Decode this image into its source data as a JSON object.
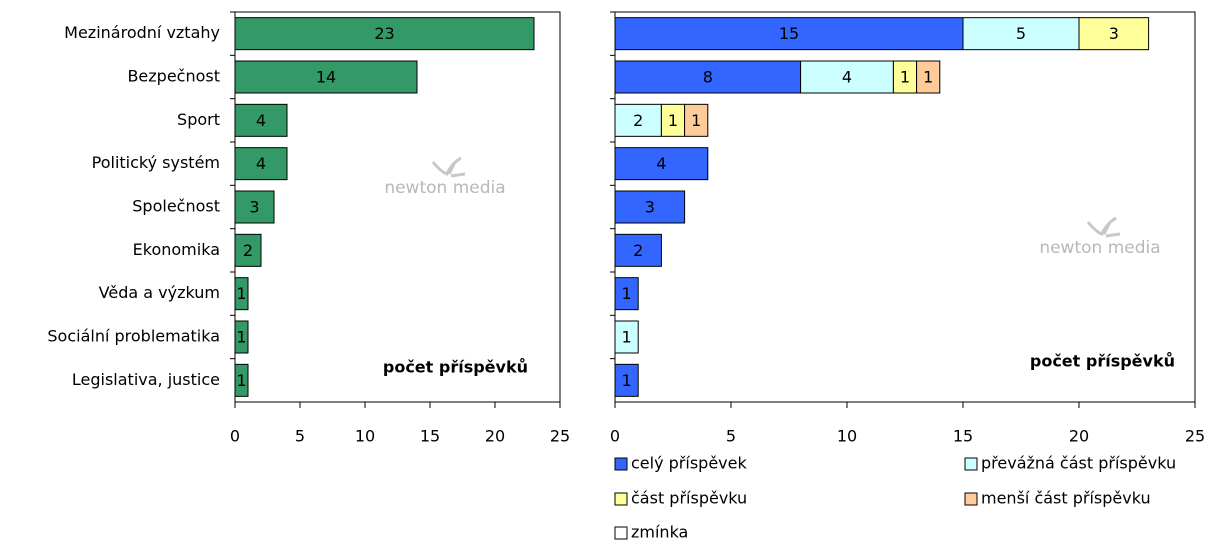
{
  "chart_data": [
    {
      "type": "bar",
      "orientation": "horizontal",
      "categories": [
        "Mezinárodní vztahy",
        "Bezpečnost",
        "Sport",
        "Politický systém",
        "Společnost",
        "Ekonomika",
        "Věda a výzkum",
        "Sociální problematika",
        "Legislativa, justice"
      ],
      "values": [
        23,
        14,
        4,
        4,
        3,
        2,
        1,
        1,
        1
      ],
      "color": "#339966",
      "xlim": [
        0,
        25
      ],
      "xticks": [
        0,
        5,
        10,
        15,
        20,
        25
      ],
      "annotation": "počet příspěvků",
      "watermark": "newton media"
    },
    {
      "type": "stacked_bar",
      "orientation": "horizontal",
      "categories": [
        null,
        null,
        null,
        null,
        null,
        null,
        null,
        null,
        null
      ],
      "series": [
        {
          "name": "celý příspěvek",
          "color": "#3366ff",
          "values": [
            15,
            8,
            null,
            4,
            3,
            2,
            1,
            null,
            1
          ]
        },
        {
          "name": "převážná část příspěvku",
          "color": "#ccffff",
          "values": [
            5,
            4,
            2,
            null,
            null,
            null,
            null,
            1,
            null
          ]
        },
        {
          "name": "část příspěvku",
          "color": "#ffff99",
          "values": [
            3,
            1,
            1,
            null,
            null,
            null,
            null,
            null,
            null
          ]
        },
        {
          "name": "menší část příspěvku",
          "color": "#ffcc99",
          "values": [
            null,
            1,
            1,
            null,
            null,
            null,
            null,
            null,
            null
          ]
        },
        {
          "name": "zmínka",
          "color": "#ffffff",
          "values": [
            null,
            null,
            null,
            null,
            null,
            null,
            null,
            null,
            null
          ]
        }
      ],
      "xlim": [
        0,
        25
      ],
      "xticks": [
        0,
        5,
        10,
        15,
        20,
        25
      ],
      "annotation": "počet příspěvků",
      "watermark": "newton media"
    }
  ]
}
